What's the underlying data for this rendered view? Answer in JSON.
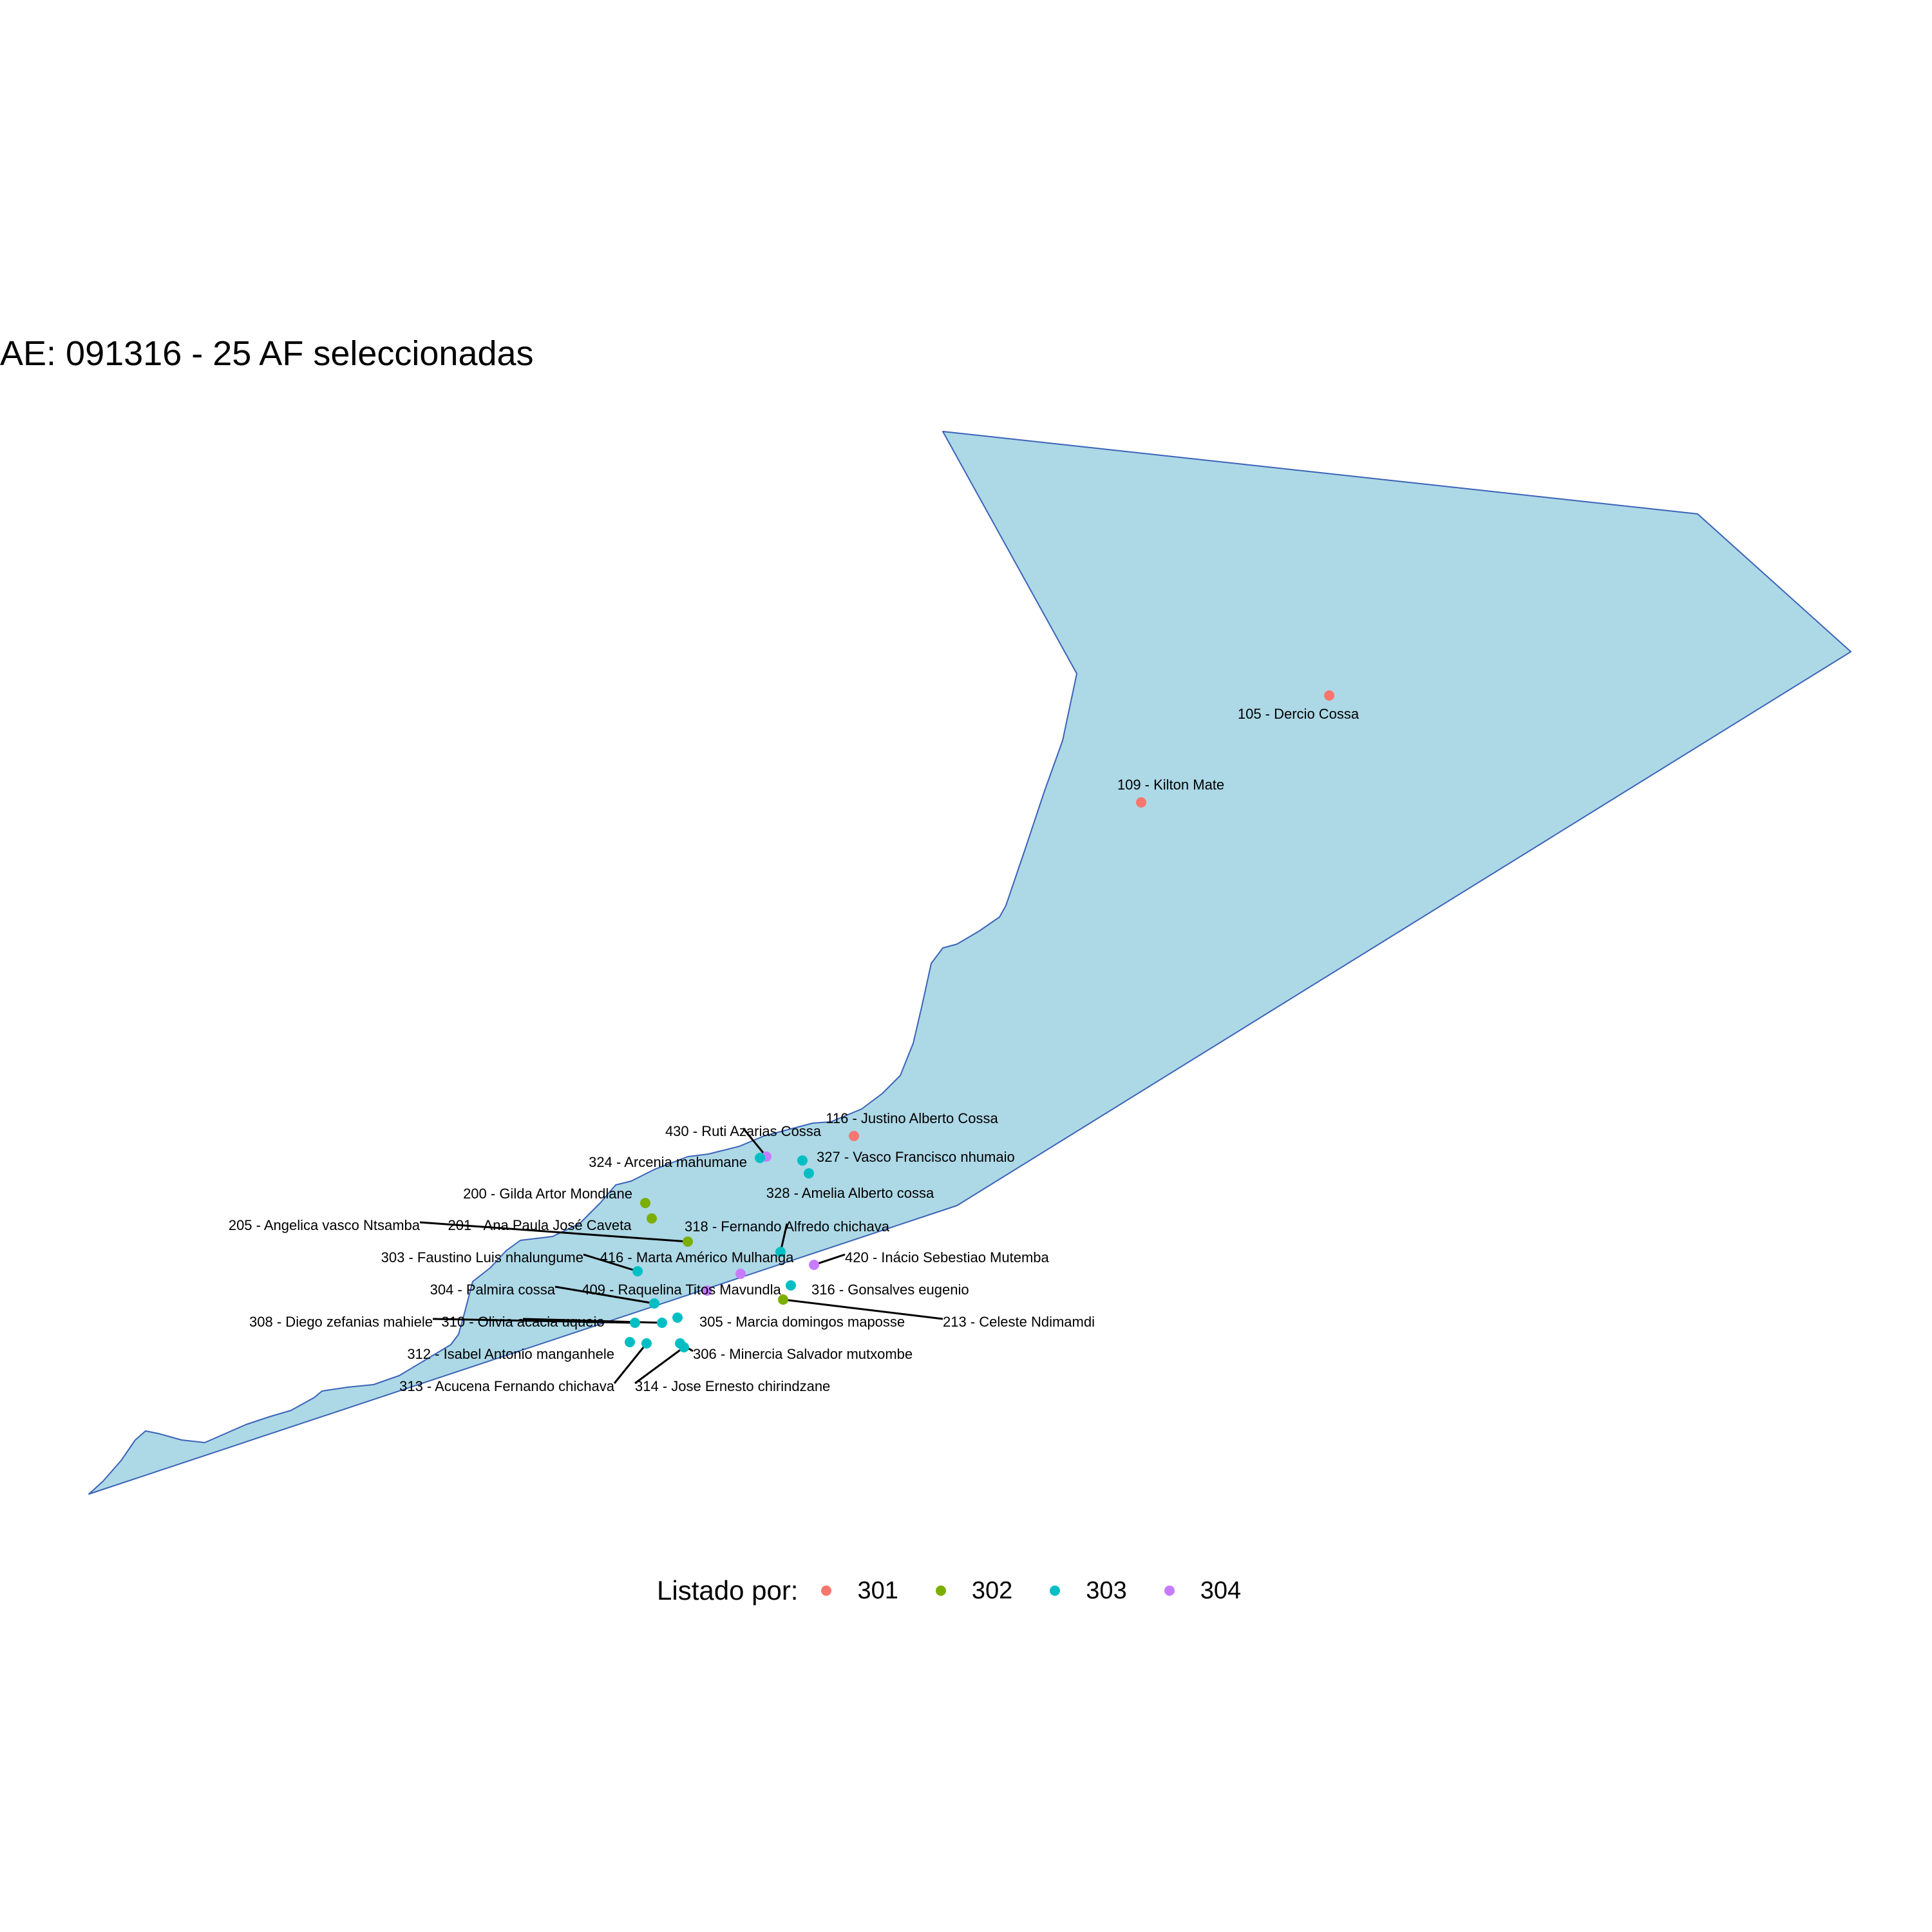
{
  "title": "AE: 091316 - 25  AF seleccionadas",
  "colors": {
    "area_fill": "#add8e6",
    "area_border": "#3a63b8",
    "leader": "#000000"
  },
  "legend": {
    "title": "Listado por:",
    "items": [
      {
        "label": "301",
        "color": "#f8766d"
      },
      {
        "label": "302",
        "color": "#7cae00"
      },
      {
        "label": "303",
        "color": "#00bfc4"
      },
      {
        "label": "304",
        "color": "#c77cff"
      }
    ]
  },
  "points": [
    {
      "label": "105 - Dercio Cossa",
      "group": "301"
    },
    {
      "label": "109 - Kilton Mate",
      "group": "301"
    },
    {
      "label": "116 - Justino Alberto Cossa",
      "group": "301"
    },
    {
      "label": "430 - Ruti  Azarias Cossa",
      "group": "304"
    },
    {
      "label": "324 - Arcenia  mahumane",
      "group": "303"
    },
    {
      "label": "327 - Vasco Francisco nhumaio",
      "group": "303"
    },
    {
      "label": "328 - Amelia Alberto cossa",
      "group": "303"
    },
    {
      "label": "200 - Gilda Artor Mondlane",
      "group": "302"
    },
    {
      "label": "205 - Angelica vasco Ntsamba",
      "group": "302"
    },
    {
      "label": "201 - Ana Paula José Caveta",
      "group": "302"
    },
    {
      "label": "318 - Fernando  Alfredo chichava",
      "group": "303"
    },
    {
      "label": "303 - Faustino Luis nhalungume",
      "group": "303"
    },
    {
      "label": "416 - Marta  Américo  Mulhanga",
      "group": "304"
    },
    {
      "label": "420 - Inácio  Sebestiao Mutemba",
      "group": "304"
    },
    {
      "label": "304 - Palmira cossa",
      "group": "303"
    },
    {
      "label": "409 - Raquelina Titos Mavundla",
      "group": "304"
    },
    {
      "label": "316 - Gonsalves eugenio",
      "group": "303"
    },
    {
      "label": "213 - Celeste Ndimamdi",
      "group": "302"
    },
    {
      "label": "308 - Diego zefanias mahiele",
      "group": "303"
    },
    {
      "label": "310 - Olivia acacia uqueio",
      "group": "303"
    },
    {
      "label": "305 - Marcia domingos maposse",
      "group": "303"
    },
    {
      "label": "312 - Isabel Antonio manganhele",
      "group": "303"
    },
    {
      "label": "306 - Minercia Salvador mutxombe",
      "group": "303"
    },
    {
      "label": "313 - Acucena Fernando  chichava",
      "group": "303"
    },
    {
      "label": "314 - Jose Ernesto chirindzane",
      "group": "303"
    }
  ]
}
